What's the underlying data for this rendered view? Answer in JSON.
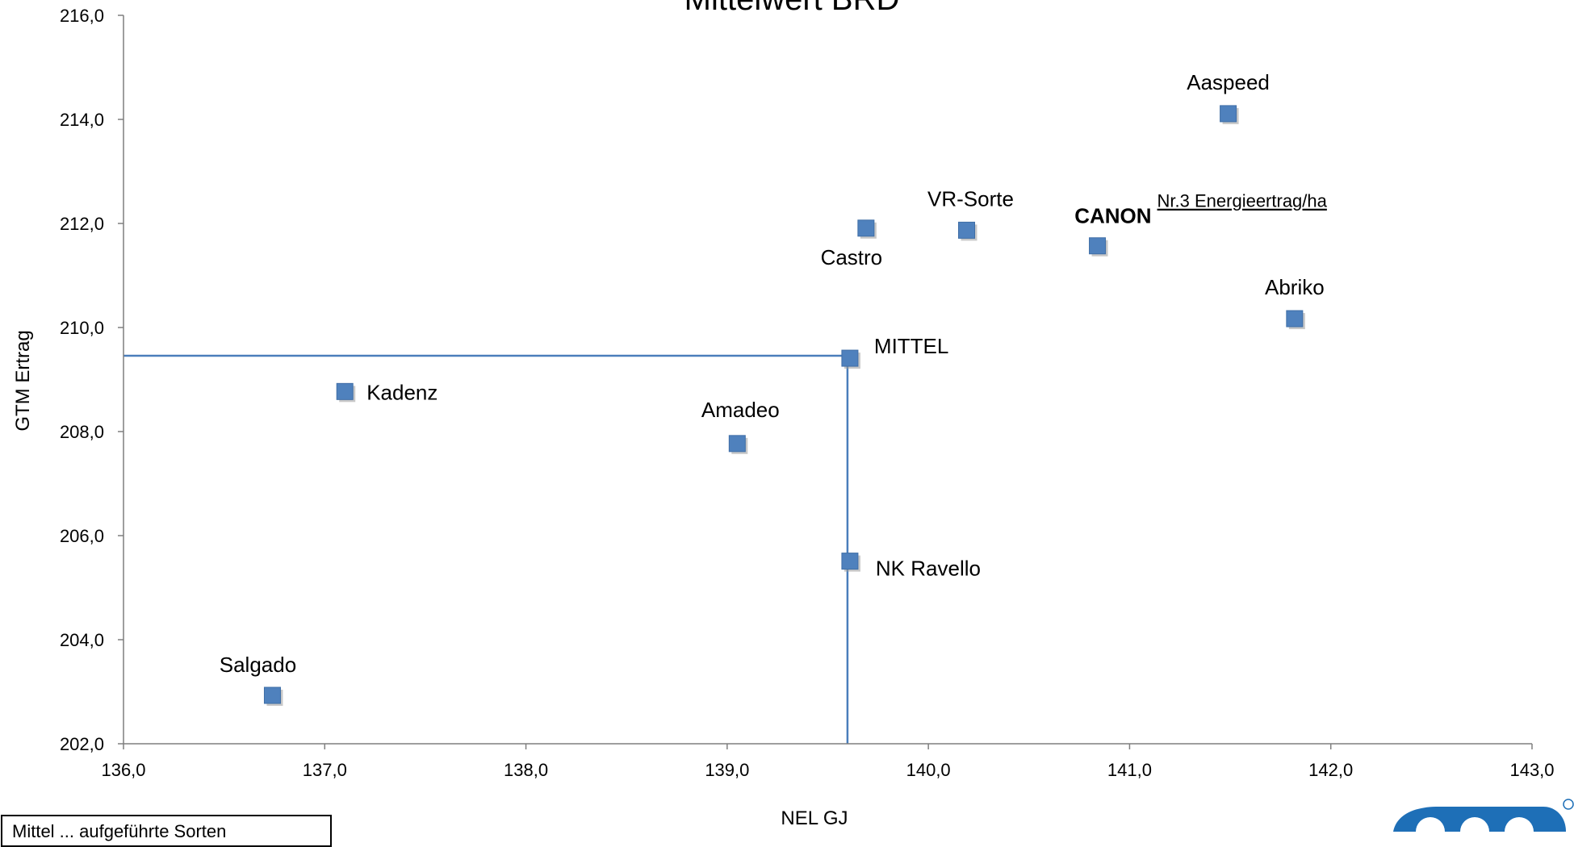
{
  "chart_data": {
    "type": "scatter",
    "title": "Mittelwert BRD",
    "xlabel": "NEL GJ",
    "ylabel": "GTM Ertrag",
    "xlim": [
      136.0,
      143.0
    ],
    "ylim": [
      202.0,
      216.0
    ],
    "xticks": [
      "136,0",
      "137,0",
      "138,0",
      "139,0",
      "140,0",
      "141,0",
      "142,0",
      "143,0"
    ],
    "yticks": [
      "202,0",
      "204,0",
      "206,0",
      "208,0",
      "210,0",
      "212,0",
      "214,0",
      "216,0"
    ],
    "grid": false,
    "marker_color": "#4F81BD",
    "line_color": "#4A7EBB",
    "points": [
      {
        "label": "Aaspeed",
        "x": 141.49,
        "y": 214.11
      },
      {
        "label": "Castro",
        "x": 139.69,
        "y": 211.91
      },
      {
        "label": "VR-Sorte",
        "x": 140.19,
        "y": 211.87
      },
      {
        "label": "CANON",
        "x": 140.84,
        "y": 211.57
      },
      {
        "label": "Abriko",
        "x": 141.82,
        "y": 210.17
      },
      {
        "label": "MITTEL",
        "x": 139.61,
        "y": 209.41
      },
      {
        "label": "Kadenz",
        "x": 137.1,
        "y": 208.77
      },
      {
        "label": "Amadeo",
        "x": 139.05,
        "y": 207.77
      },
      {
        "label": "NK Ravello",
        "x": 139.61,
        "y": 205.51
      },
      {
        "label": "Salgado",
        "x": 136.74,
        "y": 202.93
      }
    ],
    "reference_lines": {
      "x": 139.61,
      "y": 209.41
    },
    "annotations": [
      {
        "text": "Nr.3 Energieertrag/ha",
        "near": "CANON"
      }
    ]
  },
  "footnote": "Mittel ... aufgeführte Sorten",
  "logo_name": "brand-logo"
}
